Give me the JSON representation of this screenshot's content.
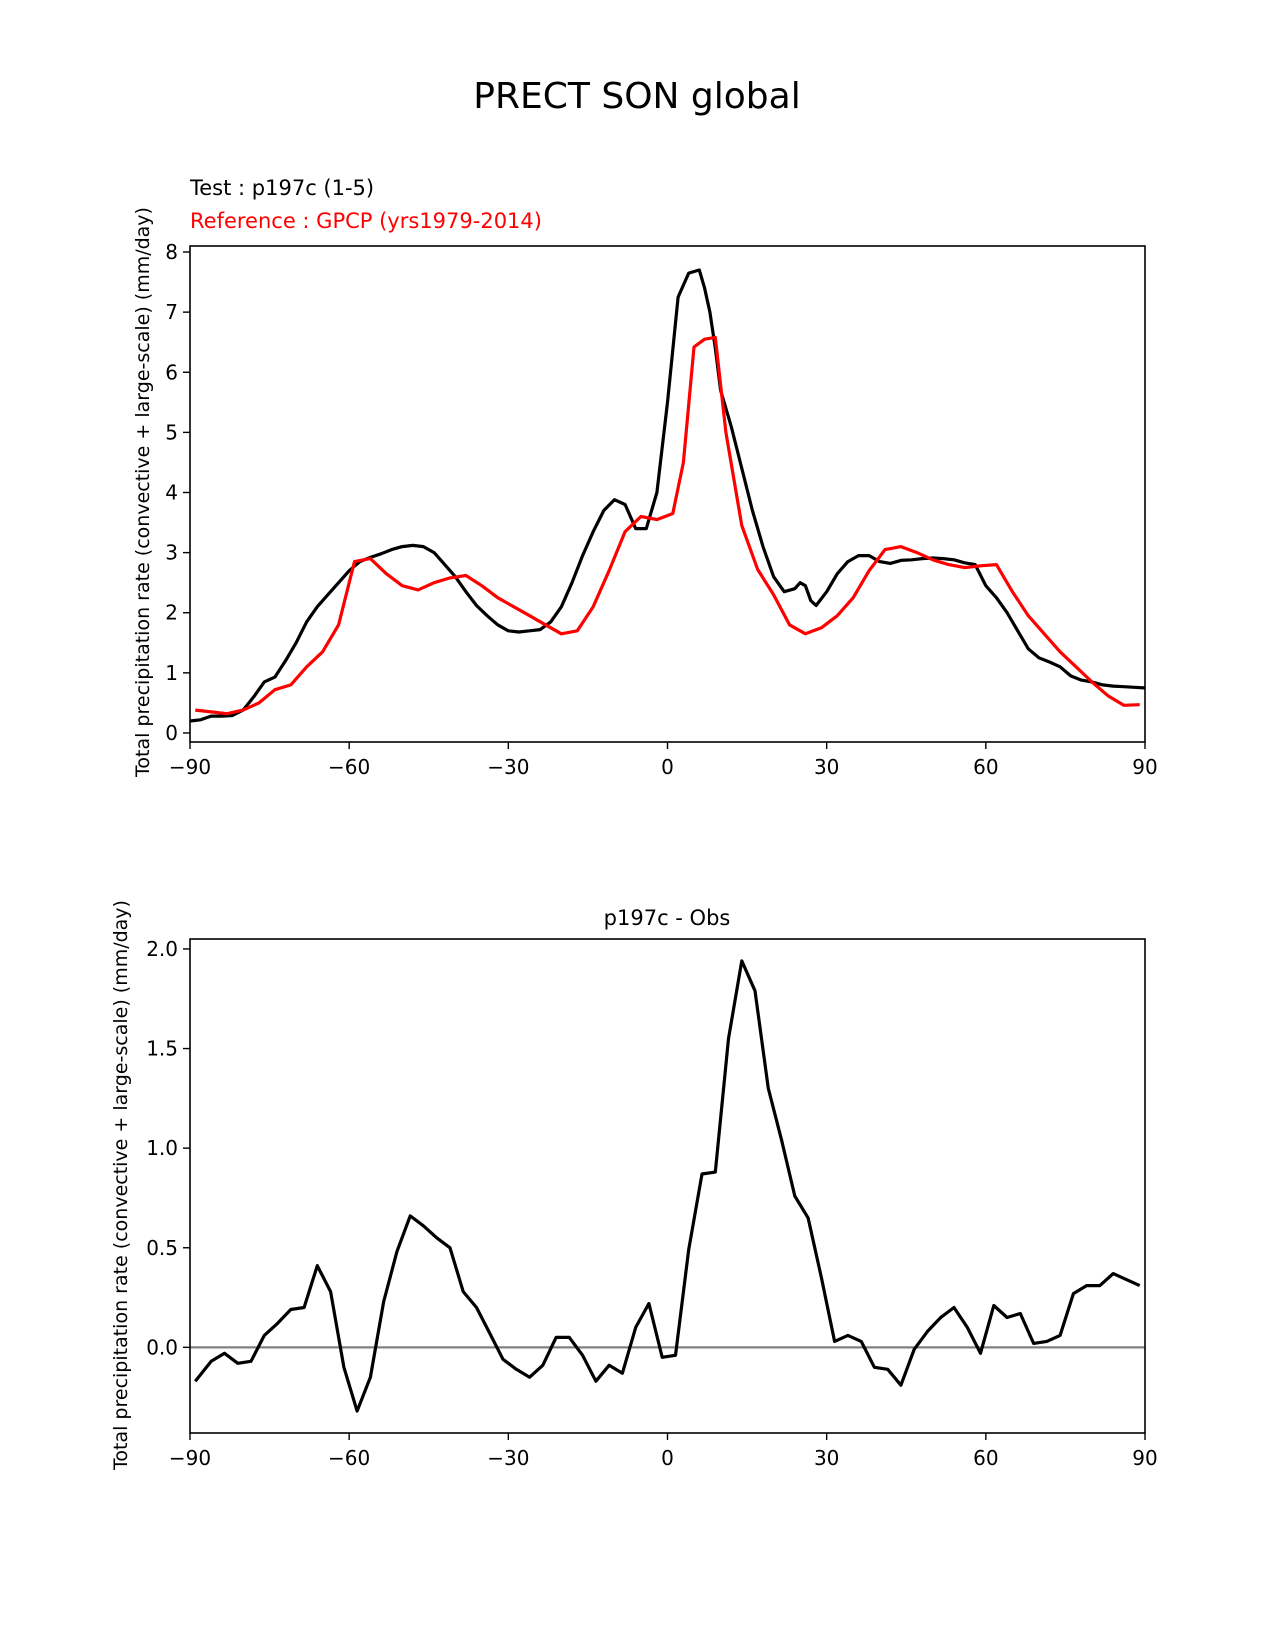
{
  "figure": {
    "title": "PRECT SON global"
  },
  "chart_data": [
    {
      "type": "line",
      "title": "",
      "test_label": "Test : p197c (1-5)",
      "ref_label": "Reference : GPCP (yrs1979-2014)",
      "xlabel": "",
      "ylabel": "Total precipitation rate (convective + large-scale) (mm/day)",
      "xlim": [
        -90,
        90
      ],
      "ylim": [
        -0.15,
        8.1
      ],
      "xticks": [
        -90,
        -60,
        -30,
        0,
        30,
        60,
        90
      ],
      "xtick_labels": [
        "−90",
        "−60",
        "−30",
        "0",
        "30",
        "60",
        "90"
      ],
      "yticks": [
        0,
        1,
        2,
        3,
        4,
        5,
        6,
        7,
        8
      ],
      "ytick_labels": [
        "0",
        "1",
        "2",
        "3",
        "4",
        "5",
        "6",
        "7",
        "8"
      ],
      "grid": false,
      "series": [
        {
          "name": "Test : p197c (1-5)",
          "color": "#000000",
          "x": [
            -90,
            -88,
            -86,
            -84,
            -82,
            -80,
            -78,
            -76,
            -74,
            -72,
            -70,
            -68,
            -66,
            -64,
            -62,
            -60,
            -58,
            -56,
            -54,
            -52,
            -50,
            -48,
            -46,
            -44,
            -42,
            -40,
            -38,
            -36,
            -34,
            -32,
            -30,
            -28,
            -26,
            -24,
            -22,
            -20,
            -18,
            -16,
            -14,
            -12,
            -10,
            -8,
            -6,
            -4,
            -2,
            0,
            2,
            4,
            6,
            7,
            8,
            9,
            10,
            12,
            14,
            16,
            18,
            20,
            22,
            24,
            25,
            26,
            27,
            28,
            30,
            32,
            34,
            36,
            38,
            40,
            42,
            44,
            46,
            48,
            50,
            52,
            54,
            56,
            58,
            60,
            62,
            64,
            66,
            68,
            70,
            72,
            74,
            76,
            78,
            80,
            82,
            84,
            86,
            88,
            90
          ],
          "y": [
            0.2,
            0.22,
            0.28,
            0.28,
            0.29,
            0.38,
            0.6,
            0.85,
            0.93,
            1.2,
            1.5,
            1.85,
            2.1,
            2.3,
            2.5,
            2.7,
            2.85,
            2.92,
            2.98,
            3.05,
            3.1,
            3.12,
            3.1,
            3.0,
            2.8,
            2.6,
            2.35,
            2.12,
            1.95,
            1.8,
            1.7,
            1.68,
            1.7,
            1.72,
            1.85,
            2.1,
            2.5,
            2.95,
            3.35,
            3.7,
            3.88,
            3.8,
            3.4,
            3.4,
            4.0,
            5.5,
            7.25,
            7.65,
            7.7,
            7.4,
            7.0,
            6.4,
            5.7,
            5.1,
            4.4,
            3.7,
            3.1,
            2.6,
            2.35,
            2.4,
            2.5,
            2.45,
            2.2,
            2.12,
            2.35,
            2.65,
            2.85,
            2.95,
            2.95,
            2.85,
            2.82,
            2.87,
            2.88,
            2.9,
            2.91,
            2.9,
            2.88,
            2.83,
            2.8,
            2.45,
            2.25,
            2.0,
            1.7,
            1.4,
            1.25,
            1.18,
            1.1,
            0.95,
            0.88,
            0.85,
            0.8,
            0.78,
            0.77,
            0.76,
            0.75
          ]
        },
        {
          "name": "Reference : GPCP (yrs1979-2014)",
          "color": "#ff0000",
          "x": [
            -89,
            -86,
            -83,
            -80,
            -77,
            -74,
            -71,
            -68,
            -65,
            -62,
            -59,
            -56,
            -53,
            -50,
            -47,
            -44,
            -41,
            -38,
            -35,
            -32,
            -29,
            -26,
            -23,
            -20,
            -17,
            -14,
            -11,
            -8,
            -5,
            -2,
            1,
            3,
            5,
            7,
            9,
            11,
            14,
            17,
            20,
            23,
            26,
            29,
            32,
            35,
            38,
            41,
            44,
            47,
            50,
            53,
            56,
            59,
            62,
            65,
            68,
            71,
            74,
            77,
            80,
            83,
            86,
            89
          ],
          "y": [
            0.38,
            0.35,
            0.32,
            0.38,
            0.5,
            0.72,
            0.8,
            1.1,
            1.35,
            1.8,
            2.85,
            2.9,
            2.65,
            2.45,
            2.38,
            2.5,
            2.58,
            2.62,
            2.45,
            2.25,
            2.1,
            1.95,
            1.8,
            1.65,
            1.7,
            2.1,
            2.7,
            3.35,
            3.6,
            3.55,
            3.65,
            4.5,
            6.42,
            6.55,
            6.58,
            5.0,
            3.45,
            2.72,
            2.3,
            1.8,
            1.65,
            1.75,
            1.95,
            2.25,
            2.7,
            3.05,
            3.1,
            3.0,
            2.88,
            2.8,
            2.75,
            2.78,
            2.8,
            2.35,
            1.95,
            1.65,
            1.35,
            1.1,
            0.85,
            0.62,
            0.46,
            0.47
          ]
        }
      ]
    },
    {
      "type": "line",
      "title": "p197c - Obs",
      "xlabel": "",
      "ylabel": "Total precipitation rate (convective + large-scale) (mm/day)",
      "xlim": [
        -90,
        90
      ],
      "ylim": [
        -0.43,
        2.05
      ],
      "xticks": [
        -90,
        -60,
        -30,
        0,
        30,
        60,
        90
      ],
      "xtick_labels": [
        "−90",
        "−60",
        "−30",
        "0",
        "30",
        "60",
        "90"
      ],
      "yticks": [
        0.0,
        0.5,
        1.0,
        1.5,
        2.0
      ],
      "ytick_labels": [
        "0.0",
        "0.5",
        "1.0",
        "1.5",
        "2.0"
      ],
      "grid": false,
      "zero_line_color": "#808080",
      "series": [
        {
          "name": "",
          "color": "#000000",
          "x": [
            -89,
            -86,
            -83.5,
            -81,
            -78.5,
            -76,
            -73.5,
            -71,
            -68.5,
            -66,
            -63.5,
            -61,
            -58.5,
            -56,
            -53.5,
            -51,
            -48.5,
            -46,
            -43.5,
            -41,
            -38.5,
            -36,
            -33.5,
            -31,
            -28.5,
            -26,
            -23.5,
            -21,
            -18.5,
            -16,
            -13.5,
            -11,
            -8.5,
            -6,
            -3.5,
            -1,
            1.5,
            4,
            6.5,
            9,
            11.5,
            14,
            16.5,
            19,
            21.5,
            24,
            26.5,
            29,
            31.5,
            34,
            36.5,
            39,
            41.5,
            44,
            46.5,
            49,
            51.5,
            54,
            56.5,
            59,
            61.5,
            64,
            66.5,
            69,
            71.5,
            74,
            76.5,
            79,
            81.5,
            84,
            86.5,
            89
          ],
          "y": [
            -0.17,
            -0.07,
            -0.03,
            -0.08,
            -0.07,
            0.06,
            0.12,
            0.19,
            0.2,
            0.41,
            0.28,
            -0.1,
            -0.32,
            -0.15,
            0.23,
            0.48,
            0.66,
            0.61,
            0.55,
            0.5,
            0.28,
            0.2,
            0.07,
            -0.06,
            -0.11,
            -0.15,
            -0.09,
            0.05,
            0.05,
            -0.04,
            -0.17,
            -0.09,
            -0.13,
            0.1,
            0.22,
            -0.05,
            -0.04,
            0.49,
            0.87,
            0.88,
            1.55,
            1.94,
            1.79,
            1.3,
            1.04,
            0.76,
            0.65,
            0.35,
            0.03,
            0.06,
            0.03,
            -0.1,
            -0.11,
            -0.19,
            -0.01,
            0.08,
            0.15,
            0.2,
            0.1,
            -0.03,
            0.21,
            0.15,
            0.17,
            0.02,
            0.03,
            0.06,
            0.27,
            0.31,
            0.31,
            0.37,
            0.34,
            0.31
          ]
        }
      ]
    }
  ]
}
